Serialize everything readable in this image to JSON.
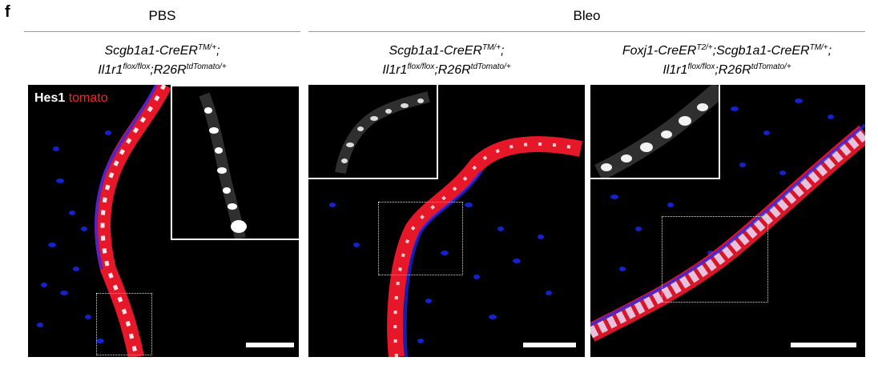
{
  "panel_label": "f",
  "groups": {
    "left": "PBS",
    "right": "Bleo"
  },
  "legend": {
    "hes1": "Hes1",
    "tomato": "tomato"
  },
  "panels": [
    {
      "line1": {
        "a": "Scgb1a1-CreER",
        "a_sup": "TM/+",
        "b": ";"
      },
      "line2": {
        "a": "Il1r1",
        "a_sup": "flox/flox",
        "b": ";R26R",
        "b_sup": "tdTomato/+"
      }
    },
    {
      "line1": {
        "a": "Scgb1a1-CreER",
        "a_sup": "TM/+",
        "b": ";"
      },
      "line2": {
        "a": "Il1r1",
        "a_sup": "flox/flox",
        "b": ";R26R",
        "b_sup": "tdTomato/+"
      }
    },
    {
      "line1": {
        "a": "Foxj1-CreER",
        "a_sup": "T2/+",
        "b": ";Scgb1a1-CreER",
        "b_sup": "TM/+",
        "c": ";"
      },
      "line2": {
        "a": "Il1r1",
        "a_sup": "flox/flox",
        "b": ";R26R",
        "b_sup": "tdTomato/+"
      }
    }
  ],
  "colors": {
    "nuclei": "#1a2bff",
    "tomato": "#ff1a2e",
    "hes1": "#ffffff",
    "background": "#000000"
  }
}
